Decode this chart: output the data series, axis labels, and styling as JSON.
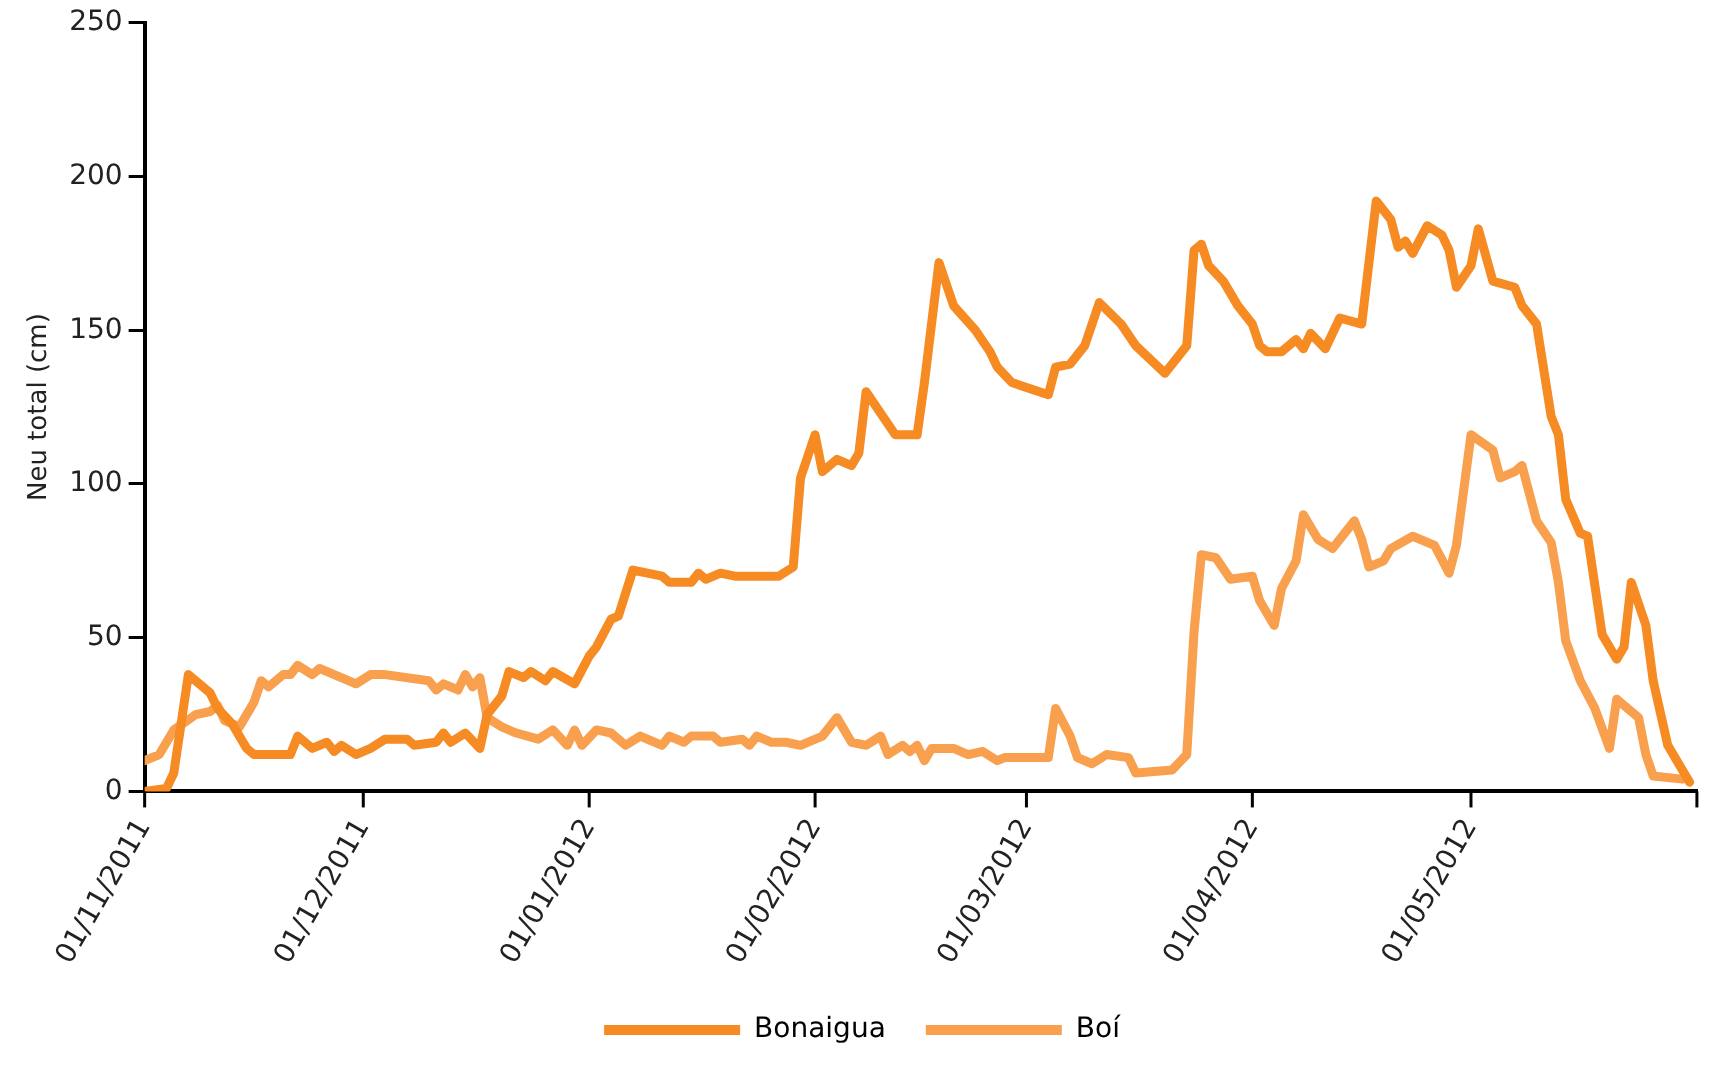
{
  "chart_data": {
    "type": "line",
    "ylabel": "Neu total (cm)",
    "xlim": [
      "2011-11-01",
      "2012-06-01"
    ],
    "xticks": [
      {
        "value": "2011-11-01",
        "label": "01/11/2011"
      },
      {
        "value": "2011-12-01",
        "label": "01/12/2011"
      },
      {
        "value": "2012-01-01",
        "label": "01/01/2012"
      },
      {
        "value": "2012-02-01",
        "label": "01/02/2012"
      },
      {
        "value": "2012-03-01",
        "label": "01/03/2012"
      },
      {
        "value": "2012-04-01",
        "label": "01/04/2012"
      },
      {
        "value": "2012-05-01",
        "label": "01/05/2012"
      },
      {
        "value": "2012-06-01",
        "label": null
      }
    ],
    "ylim": [
      0,
      250
    ],
    "yticks": [
      0,
      50,
      100,
      150,
      200,
      250
    ],
    "grid": false,
    "legend": "bottom",
    "marker": "none",
    "line_style": "solid",
    "series": [
      {
        "name": "Bonaigua",
        "color": "#f68b24",
        "x": [
          "2011-11-01",
          "2011-11-04",
          "2011-11-05",
          "2011-11-07",
          "2011-11-10",
          "2011-11-11",
          "2011-11-13",
          "2011-11-15",
          "2011-11-16",
          "2011-11-21",
          "2011-11-22",
          "2011-11-24",
          "2011-11-26",
          "2011-11-27",
          "2011-11-28",
          "2011-11-30",
          "2011-12-02",
          "2011-12-04",
          "2011-12-07",
          "2011-12-08",
          "2011-12-11",
          "2011-12-12",
          "2011-12-13",
          "2011-12-15",
          "2011-12-17",
          "2011-12-18",
          "2011-12-20",
          "2011-12-21",
          "2011-12-23",
          "2011-12-24",
          "2011-12-26",
          "2011-12-27",
          "2011-12-30",
          "2012-01-01",
          "2012-01-02",
          "2012-01-04",
          "2012-01-05",
          "2012-01-07",
          "2012-01-11",
          "2012-01-12",
          "2012-01-15",
          "2012-01-16",
          "2012-01-17",
          "2012-01-19",
          "2012-01-21",
          "2012-01-27",
          "2012-01-29",
          "2012-01-30",
          "2012-02-01",
          "2012-02-02",
          "2012-02-04",
          "2012-02-06",
          "2012-02-07",
          "2012-02-08",
          "2012-02-12",
          "2012-02-15",
          "2012-02-16",
          "2012-02-18",
          "2012-02-20",
          "2012-02-23",
          "2012-02-25",
          "2012-02-26",
          "2012-02-28",
          "2012-03-04",
          "2012-03-05",
          "2012-03-07",
          "2012-03-09",
          "2012-03-11",
          "2012-03-14",
          "2012-03-16",
          "2012-03-20",
          "2012-03-23",
          "2012-03-24",
          "2012-03-25",
          "2012-03-26",
          "2012-03-28",
          "2012-03-30",
          "2012-04-01",
          "2012-04-02",
          "2012-04-03",
          "2012-04-05",
          "2012-04-07",
          "2012-04-08",
          "2012-04-09",
          "2012-04-11",
          "2012-04-13",
          "2012-04-16",
          "2012-04-18",
          "2012-04-20",
          "2012-04-21",
          "2012-04-22",
          "2012-04-23",
          "2012-04-25",
          "2012-04-27",
          "2012-04-28",
          "2012-04-29",
          "2012-05-01",
          "2012-05-02",
          "2012-05-04",
          "2012-05-07",
          "2012-05-08",
          "2012-05-10",
          "2012-05-12",
          "2012-05-13",
          "2012-05-14",
          "2012-05-16",
          "2012-05-17",
          "2012-05-19",
          "2012-05-21",
          "2012-05-22",
          "2012-05-23",
          "2012-05-25",
          "2012-05-26",
          "2012-05-28",
          "2012-05-31"
        ],
        "values": [
          0,
          1,
          6,
          38,
          32,
          27,
          22,
          14,
          12,
          12,
          18,
          14,
          16,
          13,
          15,
          12,
          14,
          17,
          17,
          15,
          16,
          19,
          16,
          19,
          14,
          25,
          31,
          39,
          37,
          39,
          36,
          39,
          35,
          44,
          47,
          56,
          57,
          72,
          70,
          68,
          68,
          71,
          69,
          71,
          70,
          70,
          73,
          102,
          116,
          104,
          108,
          106,
          110,
          130,
          116,
          116,
          133,
          172,
          158,
          150,
          143,
          138,
          133,
          129,
          138,
          139,
          145,
          159,
          152,
          145,
          136,
          145,
          176,
          178,
          171,
          166,
          158,
          152,
          145,
          143,
          143,
          147,
          144,
          149,
          144,
          154,
          152,
          192,
          186,
          177,
          179,
          175,
          184,
          181,
          176,
          164,
          171,
          183,
          166,
          164,
          158,
          152,
          122,
          116,
          95,
          84,
          83,
          51,
          43,
          47,
          68,
          54,
          36,
          15,
          3
        ]
      },
      {
        "name": "Boí",
        "color": "#f9a04e",
        "x": [
          "2011-11-01",
          "2011-11-03",
          "2011-11-05",
          "2011-11-08",
          "2011-11-10",
          "2011-11-11",
          "2011-11-12",
          "2011-11-14",
          "2011-11-16",
          "2011-11-17",
          "2011-11-18",
          "2011-11-20",
          "2011-11-21",
          "2011-11-22",
          "2011-11-24",
          "2011-11-25",
          "2011-11-30",
          "2011-12-02",
          "2011-12-04",
          "2011-12-10",
          "2011-12-11",
          "2011-12-12",
          "2011-12-14",
          "2011-12-15",
          "2011-12-16",
          "2011-12-17",
          "2011-12-18",
          "2011-12-20",
          "2011-12-22",
          "2011-12-25",
          "2011-12-27",
          "2011-12-29",
          "2011-12-30",
          "2011-12-31",
          "2012-01-02",
          "2012-01-04",
          "2012-01-06",
          "2012-01-08",
          "2012-01-11",
          "2012-01-12",
          "2012-01-14",
          "2012-01-15",
          "2012-01-18",
          "2012-01-19",
          "2012-01-22",
          "2012-01-23",
          "2012-01-24",
          "2012-01-26",
          "2012-01-28",
          "2012-01-30",
          "2012-02-02",
          "2012-02-04",
          "2012-02-06",
          "2012-02-08",
          "2012-02-10",
          "2012-02-11",
          "2012-02-13",
          "2012-02-14",
          "2012-02-15",
          "2012-02-16",
          "2012-02-17",
          "2012-02-20",
          "2012-02-22",
          "2012-02-24",
          "2012-02-26",
          "2012-02-27",
          "2012-03-04",
          "2012-03-05",
          "2012-03-07",
          "2012-03-08",
          "2012-03-10",
          "2012-03-12",
          "2012-03-15",
          "2012-03-16",
          "2012-03-21",
          "2012-03-23",
          "2012-03-24",
          "2012-03-25",
          "2012-03-27",
          "2012-03-29",
          "2012-04-01",
          "2012-04-02",
          "2012-04-04",
          "2012-04-05",
          "2012-04-07",
          "2012-04-08",
          "2012-04-10",
          "2012-04-12",
          "2012-04-15",
          "2012-04-16",
          "2012-04-17",
          "2012-04-19",
          "2012-04-20",
          "2012-04-23",
          "2012-04-26",
          "2012-04-28",
          "2012-04-29",
          "2012-05-01",
          "2012-05-04",
          "2012-05-05",
          "2012-05-07",
          "2012-05-08",
          "2012-05-10",
          "2012-05-12",
          "2012-05-13",
          "2012-05-14",
          "2012-05-16",
          "2012-05-18",
          "2012-05-20",
          "2012-05-21",
          "2012-05-24",
          "2012-05-25",
          "2012-05-26",
          "2012-05-30"
        ],
        "values": [
          10,
          12,
          20,
          25,
          26,
          28,
          23,
          21,
          29,
          36,
          34,
          38,
          38,
          41,
          38,
          40,
          35,
          38,
          38,
          36,
          33,
          35,
          33,
          38,
          34,
          37,
          24,
          21,
          19,
          17,
          20,
          15,
          20,
          15,
          20,
          19,
          15,
          18,
          15,
          18,
          16,
          18,
          18,
          16,
          17,
          15,
          18,
          16,
          16,
          15,
          18,
          24,
          16,
          15,
          18,
          12,
          15,
          13,
          15,
          10,
          14,
          14,
          12,
          13,
          10,
          11,
          11,
          27,
          18,
          11,
          9,
          12,
          11,
          6,
          7,
          12,
          52,
          77,
          76,
          69,
          70,
          62,
          54,
          66,
          75,
          90,
          82,
          79,
          88,
          82,
          73,
          75,
          79,
          83,
          80,
          71,
          80,
          116,
          111,
          102,
          104,
          106,
          88,
          81,
          68,
          49,
          36,
          27,
          14,
          30,
          24,
          12,
          5,
          4
        ]
      }
    ]
  }
}
